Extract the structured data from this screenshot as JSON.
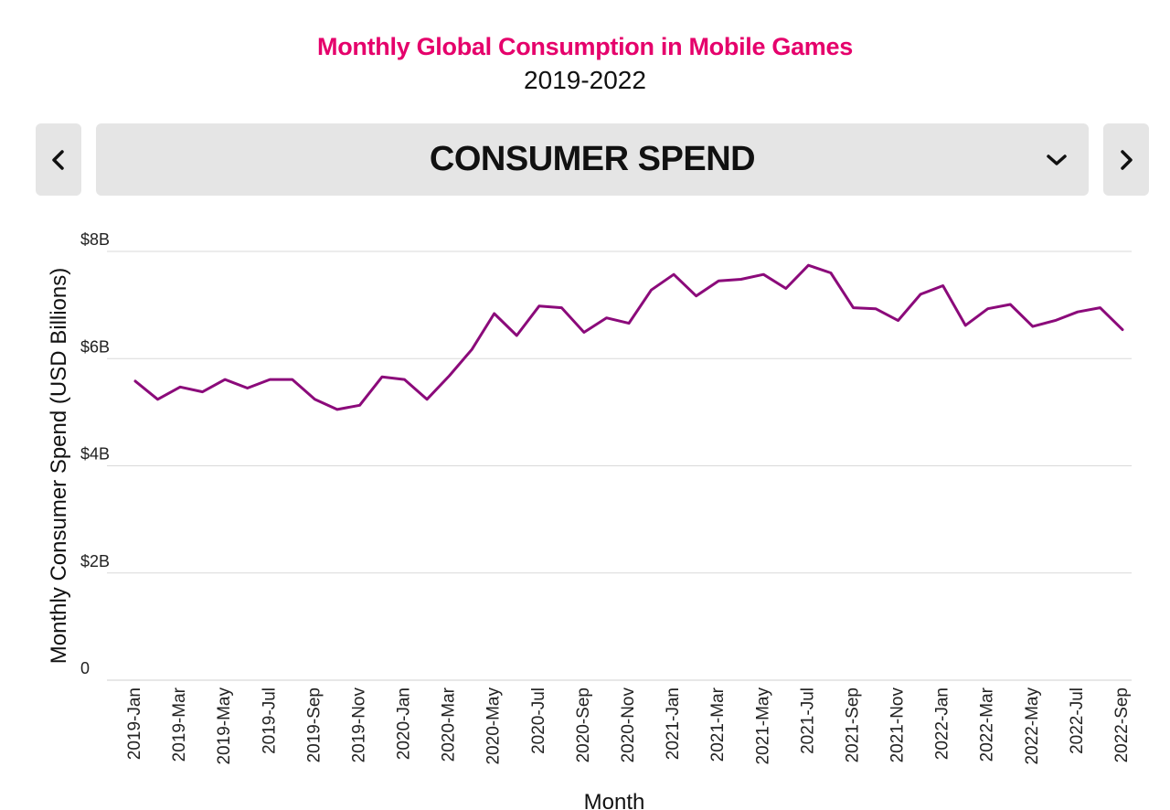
{
  "header": {
    "title": "Monthly Global Consumption in Mobile Games",
    "subtitle": "2019-2022"
  },
  "metric_selector": {
    "selected": "CONSUMER SPEND",
    "prev_icon": "chevron-left-icon",
    "next_icon": "chevron-right-icon",
    "dropdown_icon": "chevron-down-icon"
  },
  "colors": {
    "title": "#e5006b",
    "line": "#8b0a7a",
    "grid": "#d9d9d9",
    "control_bg": "#e5e5e5"
  },
  "chart_data": {
    "type": "line",
    "xlabel": "Month",
    "ylabel": "Monthly Consumer Spend (USD Billions)",
    "ylim": [
      0,
      8
    ],
    "y_ticks": [
      {
        "value": 0,
        "label": "0"
      },
      {
        "value": 2,
        "label": "$2B"
      },
      {
        "value": 4,
        "label": "$4B"
      },
      {
        "value": 6,
        "label": "$6B"
      },
      {
        "value": 8,
        "label": "$8B"
      }
    ],
    "grid": true,
    "x": [
      "2019-Jan",
      "2019-Feb",
      "2019-Mar",
      "2019-Apr",
      "2019-May",
      "2019-Jun",
      "2019-Jul",
      "2019-Aug",
      "2019-Sep",
      "2019-Oct",
      "2019-Nov",
      "2019-Dec",
      "2020-Jan",
      "2020-Feb",
      "2020-Mar",
      "2020-Apr",
      "2020-May",
      "2020-Jun",
      "2020-Jul",
      "2020-Aug",
      "2020-Sep",
      "2020-Oct",
      "2020-Nov",
      "2020-Dec",
      "2021-Jan",
      "2021-Feb",
      "2021-Mar",
      "2021-Apr",
      "2021-May",
      "2021-Jun",
      "2021-Jul",
      "2021-Aug",
      "2021-Sep",
      "2021-Oct",
      "2021-Nov",
      "2021-Dec",
      "2022-Jan",
      "2022-Feb",
      "2022-Mar",
      "2022-Apr",
      "2022-May",
      "2022-Jun",
      "2022-Jul",
      "2022-Aug",
      "2022-Sep"
    ],
    "x_tick_labels": [
      "2019-Jan",
      "2019-Mar",
      "2019-May",
      "2019-Jul",
      "2019-Sep",
      "2019-Nov",
      "2020-Jan",
      "2020-Mar",
      "2020-May",
      "2020-Jul",
      "2020-Sep",
      "2020-Nov",
      "2021-Jan",
      "2021-Mar",
      "2021-May",
      "2021-Jul",
      "2021-Sep",
      "2021-Nov",
      "2022-Jan",
      "2022-Mar",
      "2022-May",
      "2022-Jul",
      "2022-Sep"
    ],
    "series": [
      {
        "values": [
          5.58,
          5.24,
          5.47,
          5.38,
          5.61,
          5.45,
          5.61,
          5.61,
          5.24,
          5.05,
          5.13,
          5.66,
          5.61,
          5.24,
          5.68,
          6.17,
          6.84,
          6.43,
          6.98,
          6.95,
          6.49,
          6.76,
          6.66,
          7.28,
          7.57,
          7.17,
          7.45,
          7.48,
          7.57,
          7.31,
          7.74,
          7.6,
          6.95,
          6.93,
          6.71,
          7.2,
          7.36,
          6.62,
          6.93,
          7.01,
          6.6,
          6.71,
          6.87,
          6.95,
          6.54
        ]
      }
    ]
  }
}
